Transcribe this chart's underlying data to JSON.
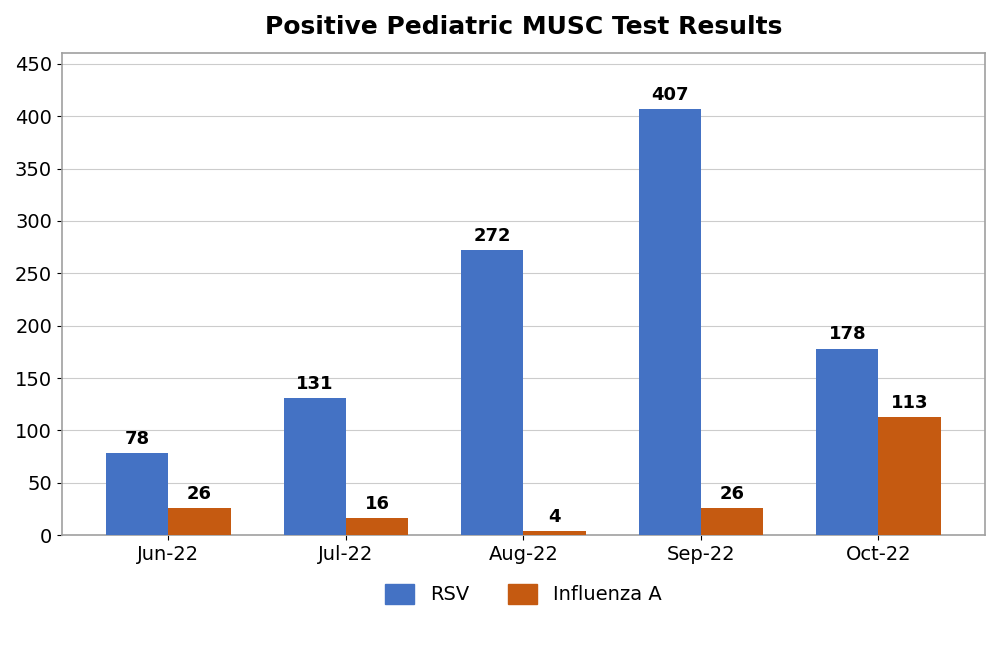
{
  "title": "Positive Pediatric MUSC Test Results",
  "categories": [
    "Jun-22",
    "Jul-22",
    "Aug-22",
    "Sep-22",
    "Oct-22"
  ],
  "rsv_values": [
    78,
    131,
    272,
    407,
    178
  ],
  "flu_values": [
    26,
    16,
    4,
    26,
    113
  ],
  "rsv_color": "#4472C4",
  "flu_color": "#C55A11",
  "bar_width": 0.35,
  "ylim": [
    0,
    460
  ],
  "yticks": [
    0,
    50,
    100,
    150,
    200,
    250,
    300,
    350,
    400,
    450
  ],
  "title_fontsize": 18,
  "tick_fontsize": 14,
  "label_fontsize": 14,
  "legend_fontsize": 14,
  "annotation_fontsize": 13,
  "background_color": "#ffffff",
  "border_color": "#a0a0a0",
  "legend_labels": [
    "RSV",
    "Influenza A"
  ],
  "grid_color": "#cccccc"
}
